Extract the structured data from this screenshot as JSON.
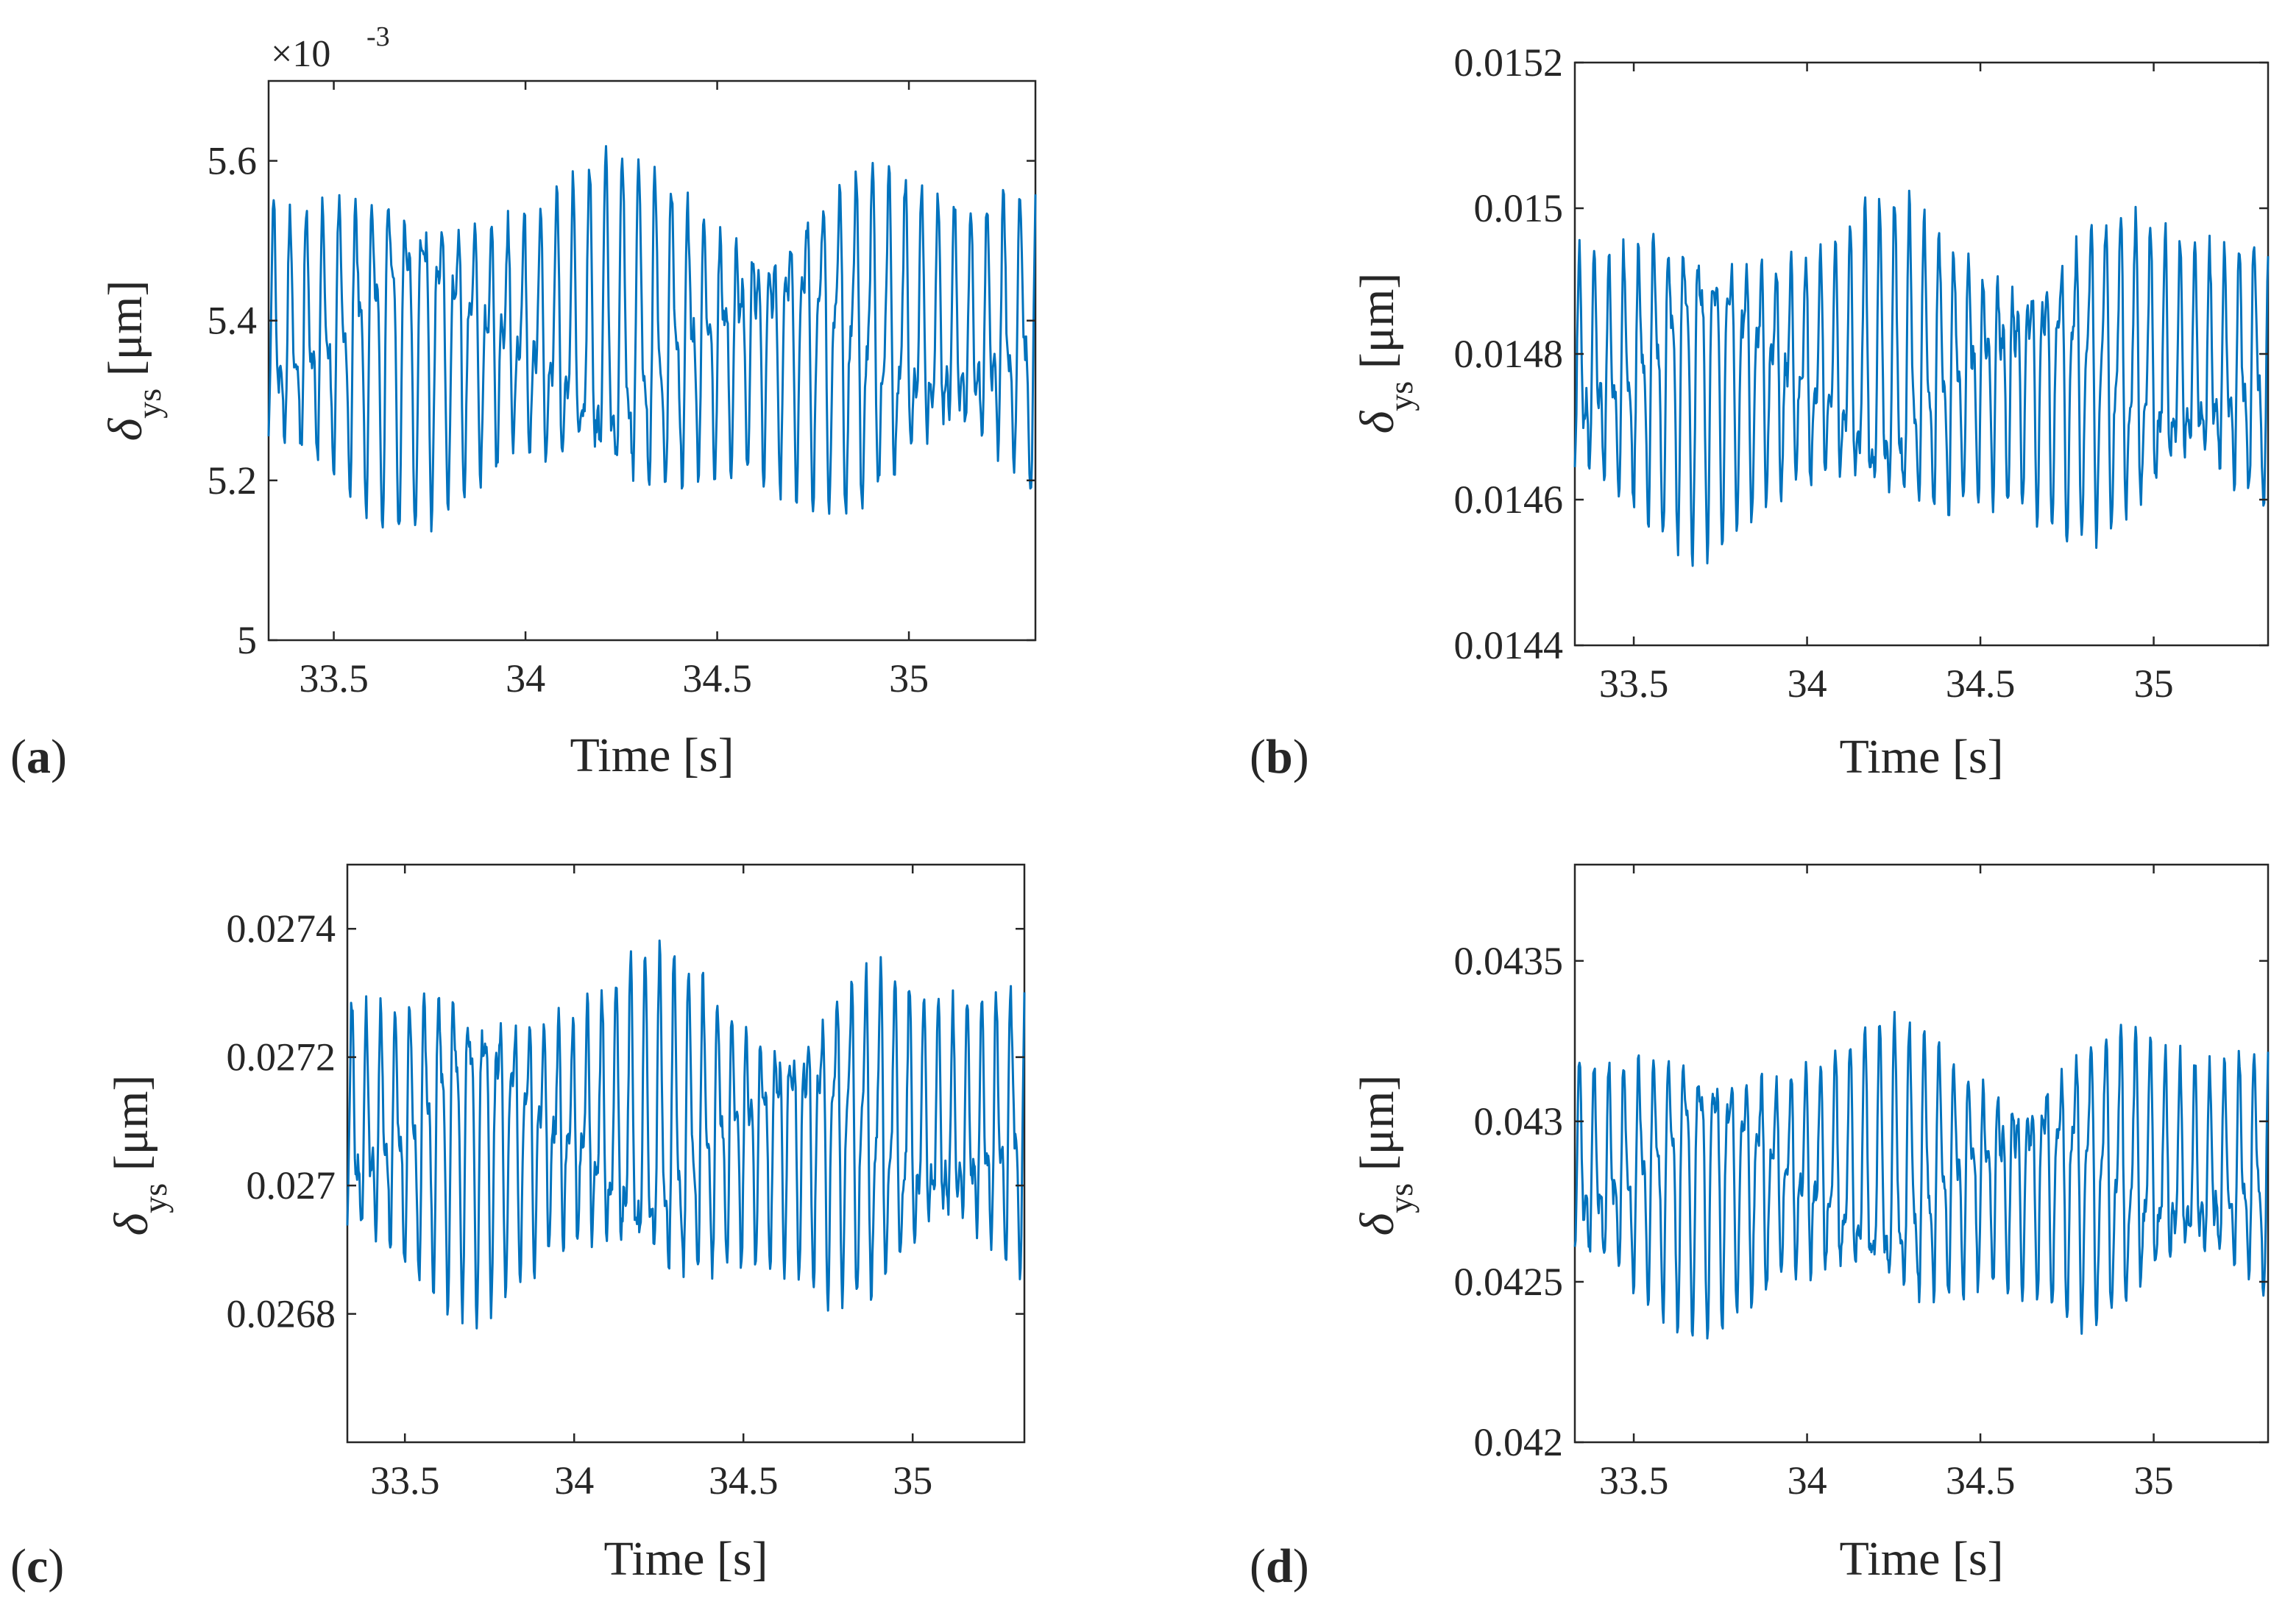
{
  "figure": {
    "line_color": "#0072BD"
  },
  "chart_data": [
    {
      "type": "line",
      "panel": "a",
      "panel_label": "a",
      "title": "",
      "xlabel": "Time [s]",
      "ylabel_symbol": "δ",
      "ylabel_subscript": "ys",
      "ylabel_unit": "[μm]",
      "xlim": [
        33.33,
        35.33
      ],
      "ylim": [
        5.0,
        5.7
      ],
      "xticks": [
        33.5,
        34,
        34.5,
        35
      ],
      "xtick_labels": [
        "33.5",
        "34",
        "34.5",
        "35"
      ],
      "yticks": [
        5.0,
        5.2,
        5.4,
        5.6
      ],
      "ytick_labels": [
        "5",
        "5.2",
        "5.4",
        "5.6"
      ],
      "y_exponent_label": "×10",
      "y_exponent_power": "-3",
      "signal": {
        "mean": 5.375,
        "amp_primary": 0.17,
        "amp_secondary": 0.07,
        "primary_hz": 23.1,
        "secondary_hz": 47.3,
        "modulation_hz": 1.7,
        "approx_max": 5.645,
        "approx_min": 5.11
      }
    },
    {
      "type": "line",
      "panel": "b",
      "panel_label": "b",
      "title": "",
      "xlabel": "Time [s]",
      "ylabel_symbol": "δ",
      "ylabel_subscript": "ys",
      "ylabel_unit": "[μm]",
      "xlim": [
        33.33,
        35.33
      ],
      "ylim": [
        0.0144,
        0.0152
      ],
      "xticks": [
        33.5,
        34,
        34.5,
        35
      ],
      "xtick_labels": [
        "33.5",
        "34",
        "34.5",
        "35"
      ],
      "yticks": [
        0.0144,
        0.0146,
        0.0148,
        0.015,
        0.0152
      ],
      "ytick_labels": [
        "0.0144",
        "0.0146",
        "0.0148",
        "0.015",
        "0.0152"
      ],
      "signal": {
        "mean": 0.01477,
        "amp_primary": 0.00018,
        "amp_secondary": 7e-05,
        "primary_hz": 23.1,
        "secondary_hz": 47.3,
        "modulation_hz": 1.7,
        "approx_max": 0.01506,
        "approx_min": 0.01449
      }
    },
    {
      "type": "line",
      "panel": "c",
      "panel_label": "c",
      "title": "",
      "xlabel": "Time [s]",
      "ylabel_symbol": "δ",
      "ylabel_subscript": "ys",
      "ylabel_unit": "[μm]",
      "xlim": [
        33.33,
        35.33
      ],
      "ylim": [
        0.0266,
        0.0275
      ],
      "xticks": [
        33.5,
        34,
        34.5,
        35
      ],
      "xtick_labels": [
        "33.5",
        "34",
        "34.5",
        "35"
      ],
      "yticks": [
        0.0268,
        0.027,
        0.0272,
        0.0274
      ],
      "ytick_labels": [
        "0.0268",
        "0.027",
        "0.0272",
        "0.0274"
      ],
      "signal": {
        "mean": 0.02708,
        "amp_primary": 0.00021,
        "amp_secondary": 8e-05,
        "primary_hz": 23.1,
        "secondary_hz": 47.3,
        "modulation_hz": 1.7,
        "approx_max": 0.02742,
        "approx_min": 0.02673
      }
    },
    {
      "type": "line",
      "panel": "d",
      "panel_label": "d",
      "title": "",
      "xlabel": "Time [s]",
      "ylabel_symbol": "δ",
      "ylabel_subscript": "ys",
      "ylabel_unit": "[μm]",
      "xlim": [
        33.33,
        35.33
      ],
      "ylim": [
        0.042,
        0.0438
      ],
      "xticks": [
        33.5,
        34,
        34.5,
        35
      ],
      "xtick_labels": [
        "33.5",
        "34",
        "34.5",
        "35"
      ],
      "yticks": [
        0.042,
        0.0425,
        0.043,
        0.0435
      ],
      "ytick_labels": [
        "0.042",
        "0.0425",
        "0.043",
        "0.0435"
      ],
      "signal": {
        "mean": 0.04283,
        "amp_primary": 0.00036,
        "amp_secondary": 0.00014,
        "primary_hz": 23.1,
        "secondary_hz": 47.3,
        "modulation_hz": 1.7,
        "approx_max": 0.04342,
        "approx_min": 0.04224
      }
    }
  ]
}
